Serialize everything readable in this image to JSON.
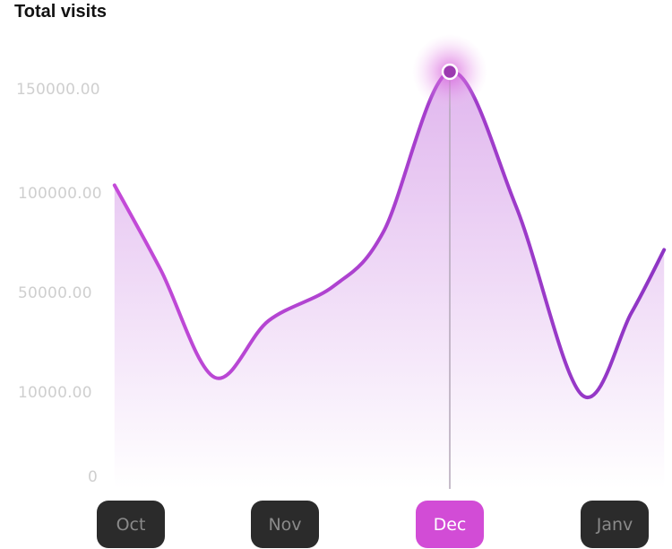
{
  "title": "Total visits",
  "colors": {
    "line_start": "#c44bd8",
    "line_end": "#8e35c4",
    "fill": "#c77ae0",
    "button_bg": "#2b2b2b",
    "button_text": "#8a8a8a",
    "button_active_bg": "#d24cd6",
    "button_active_text": "#ffffff"
  },
  "chart_data": {
    "type": "area",
    "title": "Total visits",
    "y_tick_labels": [
      "150000.00",
      "100000.00",
      "50000.00",
      "10000.00",
      "0"
    ],
    "categories": [
      "Oct",
      "Nov",
      "Dec",
      "Janv"
    ],
    "selected_category": "Dec",
    "highlight": {
      "x": 2.0,
      "y": 160000
    },
    "grid": false,
    "points": [
      {
        "x": -0.1,
        "y": 105000
      },
      {
        "x": 0.2,
        "y": 63000
      },
      {
        "x": 0.55,
        "y": 17000
      },
      {
        "x": 0.9,
        "y": 40000
      },
      {
        "x": 1.3,
        "y": 55000
      },
      {
        "x": 1.6,
        "y": 82000
      },
      {
        "x": 2.0,
        "y": 160000
      },
      {
        "x": 2.4,
        "y": 95000
      },
      {
        "x": 2.8,
        "y": 10000
      },
      {
        "x": 3.1,
        "y": 43000
      },
      {
        "x": 3.3,
        "y": 73000
      }
    ]
  },
  "months": [
    {
      "label": "Oct"
    },
    {
      "label": "Nov"
    },
    {
      "label": "Dec",
      "active": true
    },
    {
      "label": "Janv"
    }
  ]
}
